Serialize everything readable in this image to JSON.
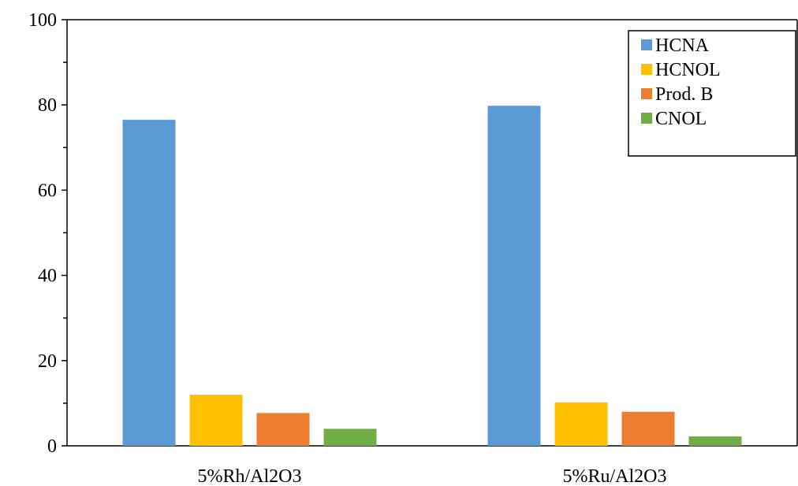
{
  "chart_data": {
    "type": "bar",
    "categories": [
      "5%Rh/Al2O3",
      "5%Ru/Al2O3"
    ],
    "series": [
      {
        "name": "HCNA",
        "color": "#5B9BD5",
        "values": [
          76.5,
          79.8
        ]
      },
      {
        "name": "HCNOL",
        "color": "#FFC000",
        "values": [
          12.0,
          10.2
        ]
      },
      {
        "name": "Prod. B",
        "color": "#ED7D31",
        "values": [
          7.7,
          8.0
        ]
      },
      {
        "name": "CNOL",
        "color": "#70AD47",
        "values": [
          4.0,
          2.2
        ]
      }
    ],
    "yticks": [
      "0",
      "20",
      "40",
      "60",
      "80",
      "100"
    ],
    "ylim": [
      0,
      100
    ],
    "title": "",
    "xlabel": "",
    "ylabel": "",
    "grid": false,
    "legend_position": "top-right"
  }
}
